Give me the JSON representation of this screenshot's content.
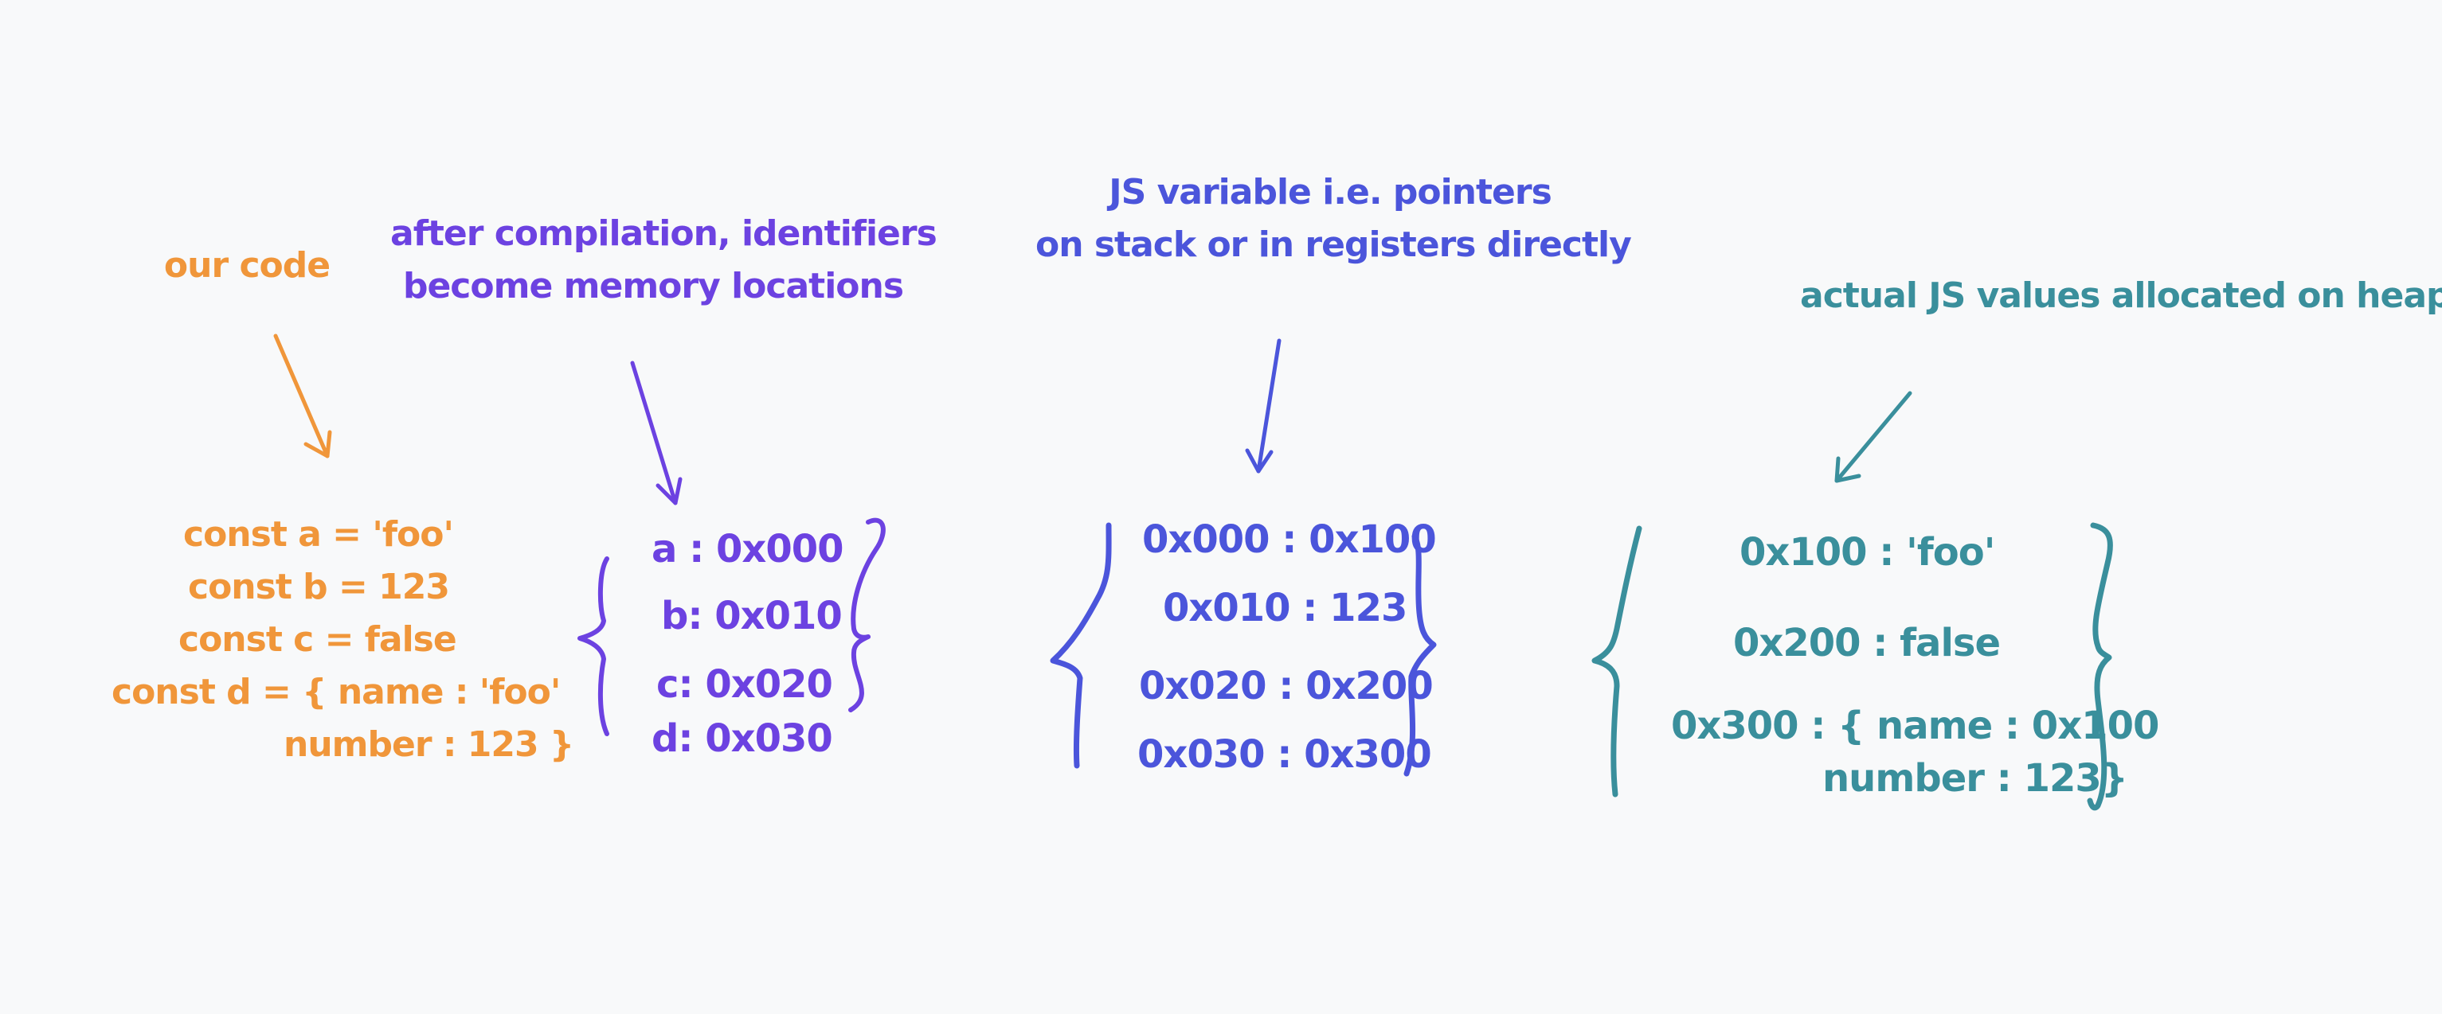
{
  "colors": {
    "code": "#f0963a",
    "identifiers": "#6c42e1",
    "stack": "#4b55db",
    "heap": "#3a8f9c",
    "background": "#f8f9fa"
  },
  "captions": {
    "code": "our code",
    "identifiers_line1": "after compilation, identifiers",
    "identifiers_line2": "become memory locations",
    "stack_line1": "JS variable  i.e. pointers",
    "stack_line2": "on stack or in registers directly",
    "heap": "actual JS values allocated on heap"
  },
  "code_lines": [
    "const a = 'foo'",
    "const b = 123",
    "const c = false",
    "const d = { name : 'foo'",
    "number : 123 }"
  ],
  "identifiers": [
    "a : 0x000",
    "b: 0x010",
    "c: 0x020",
    "d: 0x030"
  ],
  "stack": [
    "0x000 : 0x100",
    "0x010 : 123",
    "0x020 : 0x200",
    "0x030 : 0x300"
  ],
  "heap": [
    "0x100 : 'foo'",
    "0x200 : false",
    "0x300 : { name : 0x100",
    "number : 123}"
  ]
}
